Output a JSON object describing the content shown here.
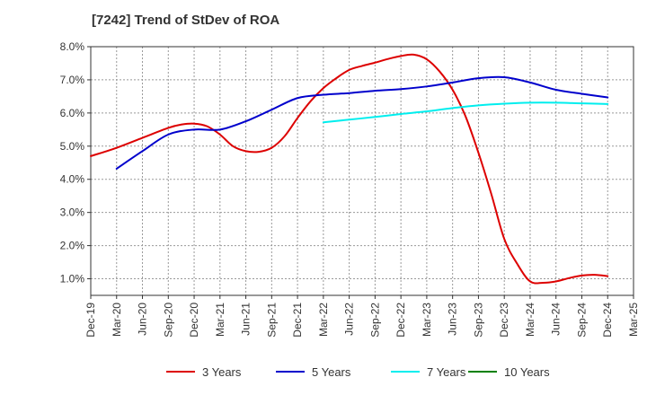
{
  "chart_data": {
    "type": "line",
    "title": "[7242]  Trend of StDev of ROA",
    "xlabel": "",
    "ylabel": "",
    "x_ticks": [
      "Dec-19",
      "Mar-20",
      "Jun-20",
      "Sep-20",
      "Dec-20",
      "Mar-21",
      "Jun-21",
      "Sep-21",
      "Dec-21",
      "Mar-22",
      "Jun-22",
      "Sep-22",
      "Dec-22",
      "Mar-23",
      "Jun-23",
      "Sep-23",
      "Dec-23",
      "Mar-24",
      "Jun-24",
      "Sep-24",
      "Dec-24",
      "Mar-25"
    ],
    "y_ticks": [
      "1.0%",
      "2.0%",
      "3.0%",
      "4.0%",
      "5.0%",
      "6.0%",
      "7.0%",
      "8.0%"
    ],
    "y_tick_values": [
      1.0,
      2.0,
      3.0,
      4.0,
      5.0,
      6.0,
      7.0,
      8.0
    ],
    "ylim": [
      0.5,
      8.0
    ],
    "grid": true,
    "legend_position": "bottom",
    "series": [
      {
        "name": "3 Years",
        "color": "#dd0000",
        "x": [
          0,
          1,
          2,
          3,
          3.5,
          4,
          4.5,
          5,
          5.5,
          6,
          6.5,
          7,
          7.5,
          8,
          8.5,
          9,
          9.5,
          10,
          10.5,
          11,
          11.5,
          12,
          12.5,
          13,
          13.5,
          14,
          14.5,
          15,
          15.5,
          16,
          16.5,
          17,
          17.5,
          18,
          18.5,
          19,
          19.5,
          20
        ],
        "values": [
          4.7,
          4.95,
          5.25,
          5.55,
          5.65,
          5.68,
          5.6,
          5.35,
          5.0,
          4.85,
          4.83,
          4.95,
          5.3,
          5.85,
          6.35,
          6.75,
          7.05,
          7.3,
          7.42,
          7.52,
          7.63,
          7.72,
          7.76,
          7.62,
          7.25,
          6.7,
          5.9,
          4.8,
          3.55,
          2.2,
          1.45,
          0.92,
          0.88,
          0.92,
          1.02,
          1.1,
          1.12,
          1.08
        ]
      },
      {
        "name": "5 Years",
        "color": "#0000cc",
        "x": [
          1,
          2,
          3,
          4,
          5,
          6,
          7,
          8,
          9,
          10,
          11,
          12,
          13,
          14,
          15,
          16,
          17,
          18,
          19,
          20
        ],
        "values": [
          4.32,
          4.85,
          5.35,
          5.5,
          5.5,
          5.75,
          6.1,
          6.45,
          6.55,
          6.6,
          6.67,
          6.72,
          6.8,
          6.92,
          7.05,
          7.08,
          6.92,
          6.7,
          6.58,
          6.47
        ]
      },
      {
        "name": "7 Years",
        "color": "#00eeee",
        "x": [
          9,
          10,
          11,
          12,
          13,
          14,
          15,
          16,
          17,
          18,
          19,
          20
        ],
        "values": [
          5.72,
          5.8,
          5.88,
          5.97,
          6.05,
          6.15,
          6.23,
          6.28,
          6.31,
          6.31,
          6.29,
          6.27
        ]
      },
      {
        "name": "10 Years",
        "color": "#008000",
        "x": [],
        "values": []
      }
    ]
  }
}
